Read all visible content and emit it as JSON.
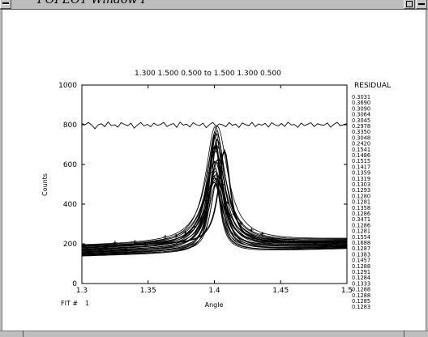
{
  "window": {
    "title": "FOFEOT Window I"
  },
  "plot": {
    "header_params": "1.300   1.500   0.500  to     1.500   1.300   0.500",
    "residual_heading": "RESIDUAL",
    "xlabel": "Angle",
    "ylabel": "Counts",
    "fit_label": "FIT  #",
    "fit_number": "1",
    "x_ticks": [
      "1.3",
      "1.35",
      "1.4",
      "1.45",
      "1.5"
    ],
    "y_ticks": [
      "0",
      "200",
      "400",
      "600",
      "800",
      "1000"
    ]
  },
  "residuals": [
    "0.3031",
    "0.3690",
    "0.3090",
    "0.3064",
    "0.3045",
    "0.2978",
    "0.3350",
    "0.3048",
    "0.2420",
    "0.1541",
    "0.1486",
    "0.1515",
    "0.1417",
    "0.1359",
    "0.1319",
    "0.1303",
    "0.1293",
    "0.1280",
    "0.1281",
    "0.1358",
    "0.1286",
    "0.3471",
    "0.1286",
    "0.1281",
    "0.1554",
    "0.1688",
    "0.1287",
    "0.1383",
    "0.1457",
    "0.1288",
    "0.1291",
    "0.1284",
    "0.1333",
    "0.1288",
    "0.1288",
    "0.1285",
    "0.1283"
  ],
  "chart_data": {
    "type": "line",
    "xlim": [
      1.3,
      1.5
    ],
    "ylim": [
      0,
      1000
    ],
    "xlabel": "Angle",
    "ylabel": "Counts",
    "grid": false,
    "legend": "none",
    "residual_trace": {
      "level": 800,
      "y": [
        806,
        800,
        812,
        798,
        780,
        800,
        805,
        790,
        814,
        796,
        800,
        788,
        810,
        802,
        795,
        808,
        783,
        799,
        811,
        794,
        802,
        790,
        808,
        797,
        801,
        812,
        791,
        800,
        806,
        787,
        813,
        798,
        803,
        789,
        810,
        800,
        796,
        808,
        785,
        801,
        812,
        793,
        804,
        799,
        790,
        811,
        797,
        803,
        786,
        809,
        801,
        795,
        812,
        790,
        804,
        798,
        807,
        788,
        810,
        800,
        794,
        806,
        792,
        813,
        799,
        801,
        787,
        808,
        796,
        803,
        810,
        791,
        805,
        800,
        797,
        809,
        788,
        802,
        812,
        795,
        801,
        806
      ]
    },
    "peak_model": {
      "baseline_start": 165,
      "baseline_end": 200,
      "peak_center": 1.401,
      "peak_height": 540,
      "half_width": 0.0065,
      "curve_count": 28,
      "secondary_center": 1.4075,
      "secondary_height": 470
    },
    "observations": {
      "x": [
        1.302,
        1.31,
        1.318,
        1.325,
        1.333,
        1.34,
        1.348,
        1.356,
        1.363,
        1.371,
        1.378,
        1.385,
        1.39,
        1.394,
        1.397,
        1.399,
        1.401,
        1.403,
        1.406,
        1.41,
        1.415,
        1.42,
        1.428,
        1.436,
        1.444,
        1.452,
        1.46,
        1.468,
        1.476,
        1.484,
        1.492,
        1.498
      ],
      "y": [
        150,
        175,
        180,
        205,
        170,
        210,
        195,
        205,
        235,
        240,
        255,
        285,
        330,
        420,
        560,
        660,
        690,
        620,
        500,
        410,
        350,
        305,
        270,
        250,
        222,
        208,
        212,
        205,
        200,
        210,
        195,
        200
      ]
    }
  }
}
